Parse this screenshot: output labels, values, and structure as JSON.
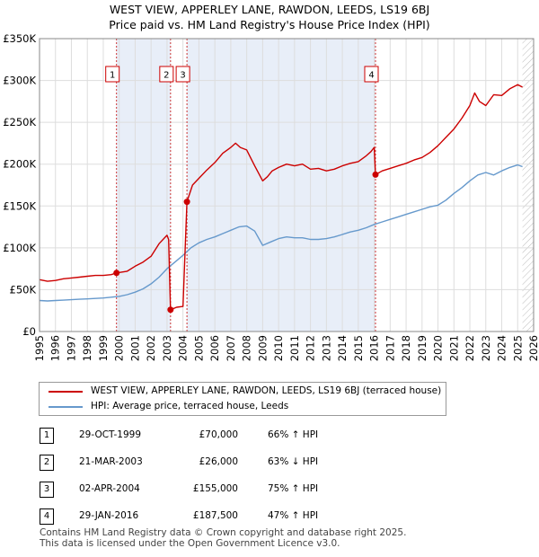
{
  "title_line1": "WEST VIEW, APPERLEY LANE, RAWDON, LEEDS, LS19 6BJ",
  "title_line2": "Price paid vs. HM Land Registry's House Price Index (HPI)",
  "colors": {
    "property": "#cc0000",
    "hpi": "#6699cc",
    "shade": "#e8eef8",
    "grid": "#dddddd",
    "vline": "#cc3333"
  },
  "chart_data": {
    "type": "line",
    "title": "Price paid vs. HM Land Registry's House Price Index (HPI)",
    "xlim": [
      1995,
      2026
    ],
    "ylim": [
      0,
      350000
    ],
    "y_ticks": [
      0,
      50000,
      100000,
      150000,
      200000,
      250000,
      300000,
      350000
    ],
    "y_tick_labels": [
      "£0",
      "£50K",
      "£100K",
      "£150K",
      "£200K",
      "£250K",
      "£300K",
      "£350K"
    ],
    "x_ticks": [
      1995,
      1996,
      1997,
      1998,
      1999,
      2000,
      2001,
      2002,
      2003,
      2004,
      2005,
      2006,
      2007,
      2008,
      2009,
      2010,
      2011,
      2012,
      2013,
      2014,
      2015,
      2016,
      2017,
      2018,
      2019,
      2020,
      2021,
      2022,
      2023,
      2024,
      2025,
      2026
    ],
    "shaded_ranges": [
      [
        1999.83,
        2003.22
      ],
      [
        2004.25,
        2016.08
      ]
    ],
    "series": [
      {
        "name": "WEST VIEW, APPERLEY LANE, RAWDON, LEEDS, LS19 6BJ (terraced house)",
        "x": [
          1995.0,
          1995.5,
          1996.0,
          1996.5,
          1997.0,
          1997.5,
          1998.0,
          1998.5,
          1999.0,
          1999.5,
          1999.83,
          2000.5,
          2001.0,
          2001.5,
          2002.0,
          2002.5,
          2003.0,
          2003.1,
          2003.22,
          2003.6,
          2004.0,
          2004.25,
          2004.6,
          2005.0,
          2005.5,
          2006.0,
          2006.5,
          2007.0,
          2007.3,
          2007.6,
          2008.0,
          2008.5,
          2009.0,
          2009.3,
          2009.6,
          2010.0,
          2010.5,
          2011.0,
          2011.5,
          2012.0,
          2012.5,
          2013.0,
          2013.5,
          2014.0,
          2014.5,
          2015.0,
          2015.5,
          2015.8,
          2016.0,
          2016.08,
          2016.5,
          2017.0,
          2017.5,
          2018.0,
          2018.5,
          2019.0,
          2019.5,
          2020.0,
          2020.5,
          2021.0,
          2021.5,
          2022.0,
          2022.3,
          2022.6,
          2023.0,
          2023.5,
          2024.0,
          2024.5,
          2025.0,
          2025.3
        ],
        "y": [
          62000,
          60000,
          61000,
          63000,
          64000,
          65000,
          66000,
          67000,
          67000,
          68000,
          70000,
          72000,
          78000,
          83000,
          90000,
          105000,
          115000,
          110000,
          26000,
          29000,
          30000,
          155000,
          175000,
          183000,
          193000,
          202000,
          213000,
          220000,
          225000,
          220000,
          217000,
          198000,
          180000,
          185000,
          192000,
          196000,
          200000,
          198000,
          200000,
          194000,
          195000,
          192000,
          194000,
          198000,
          201000,
          203000,
          210000,
          215000,
          220000,
          187500,
          192000,
          195000,
          198000,
          201000,
          205000,
          208000,
          214000,
          222000,
          232000,
          242000,
          255000,
          270000,
          285000,
          275000,
          270000,
          283000,
          282000,
          290000,
          295000,
          292000
        ]
      },
      {
        "name": "HPI: Average price, terraced house, Leeds",
        "x": [
          1995.0,
          1995.5,
          1996.0,
          1996.5,
          1997.0,
          1997.5,
          1998.0,
          1998.5,
          1999.0,
          1999.5,
          2000.0,
          2000.5,
          2001.0,
          2001.5,
          2002.0,
          2002.5,
          2003.0,
          2003.5,
          2004.0,
          2004.5,
          2005.0,
          2005.5,
          2006.0,
          2006.5,
          2007.0,
          2007.5,
          2008.0,
          2008.5,
          2009.0,
          2009.5,
          2010.0,
          2010.5,
          2011.0,
          2011.5,
          2012.0,
          2012.5,
          2013.0,
          2013.5,
          2014.0,
          2014.5,
          2015.0,
          2015.5,
          2016.0,
          2016.5,
          2017.0,
          2017.5,
          2018.0,
          2018.5,
          2019.0,
          2019.5,
          2020.0,
          2020.5,
          2021.0,
          2021.5,
          2022.0,
          2022.5,
          2023.0,
          2023.5,
          2024.0,
          2024.5,
          2025.0,
          2025.3
        ],
        "y": [
          37000,
          36500,
          37000,
          37500,
          38000,
          38500,
          39000,
          39500,
          40000,
          41000,
          42000,
          44000,
          47000,
          51000,
          57000,
          65000,
          75000,
          83000,
          91000,
          100000,
          106000,
          110000,
          113000,
          117000,
          121000,
          125000,
          126000,
          120000,
          103000,
          107000,
          111000,
          113000,
          112000,
          112000,
          110000,
          110000,
          111000,
          113000,
          116000,
          119000,
          121000,
          124000,
          128000,
          131000,
          134000,
          137000,
          140000,
          143000,
          146000,
          149000,
          151000,
          157000,
          165000,
          172000,
          180000,
          187000,
          190000,
          187000,
          192000,
          196000,
          199000,
          197000
        ]
      }
    ],
    "sale_points": [
      {
        "label": "1",
        "x": 1999.83,
        "y": 70000
      },
      {
        "label": "2",
        "x": 2003.22,
        "y": 26000
      },
      {
        "label": "3",
        "x": 2004.25,
        "y": 155000
      },
      {
        "label": "4",
        "x": 2016.08,
        "y": 187500
      }
    ]
  },
  "legend": {
    "property_label": "WEST VIEW, APPERLEY LANE, RAWDON, LEEDS, LS19 6BJ (terraced house)",
    "hpi_label": "HPI: Average price, terraced house, Leeds"
  },
  "transactions": [
    {
      "badge": "1",
      "date": "29-OCT-1999",
      "price": "£70,000",
      "hpi": "66% ↑ HPI"
    },
    {
      "badge": "2",
      "date": "21-MAR-2003",
      "price": "£26,000",
      "hpi": "63% ↓ HPI"
    },
    {
      "badge": "3",
      "date": "02-APR-2004",
      "price": "£155,000",
      "hpi": "75% ↑ HPI"
    },
    {
      "badge": "4",
      "date": "29-JAN-2016",
      "price": "£187,500",
      "hpi": "47% ↑ HPI"
    }
  ],
  "footer_line1": "Contains HM Land Registry data © Crown copyright and database right 2025.",
  "footer_line2": "This data is licensed under the Open Government Licence v3.0."
}
